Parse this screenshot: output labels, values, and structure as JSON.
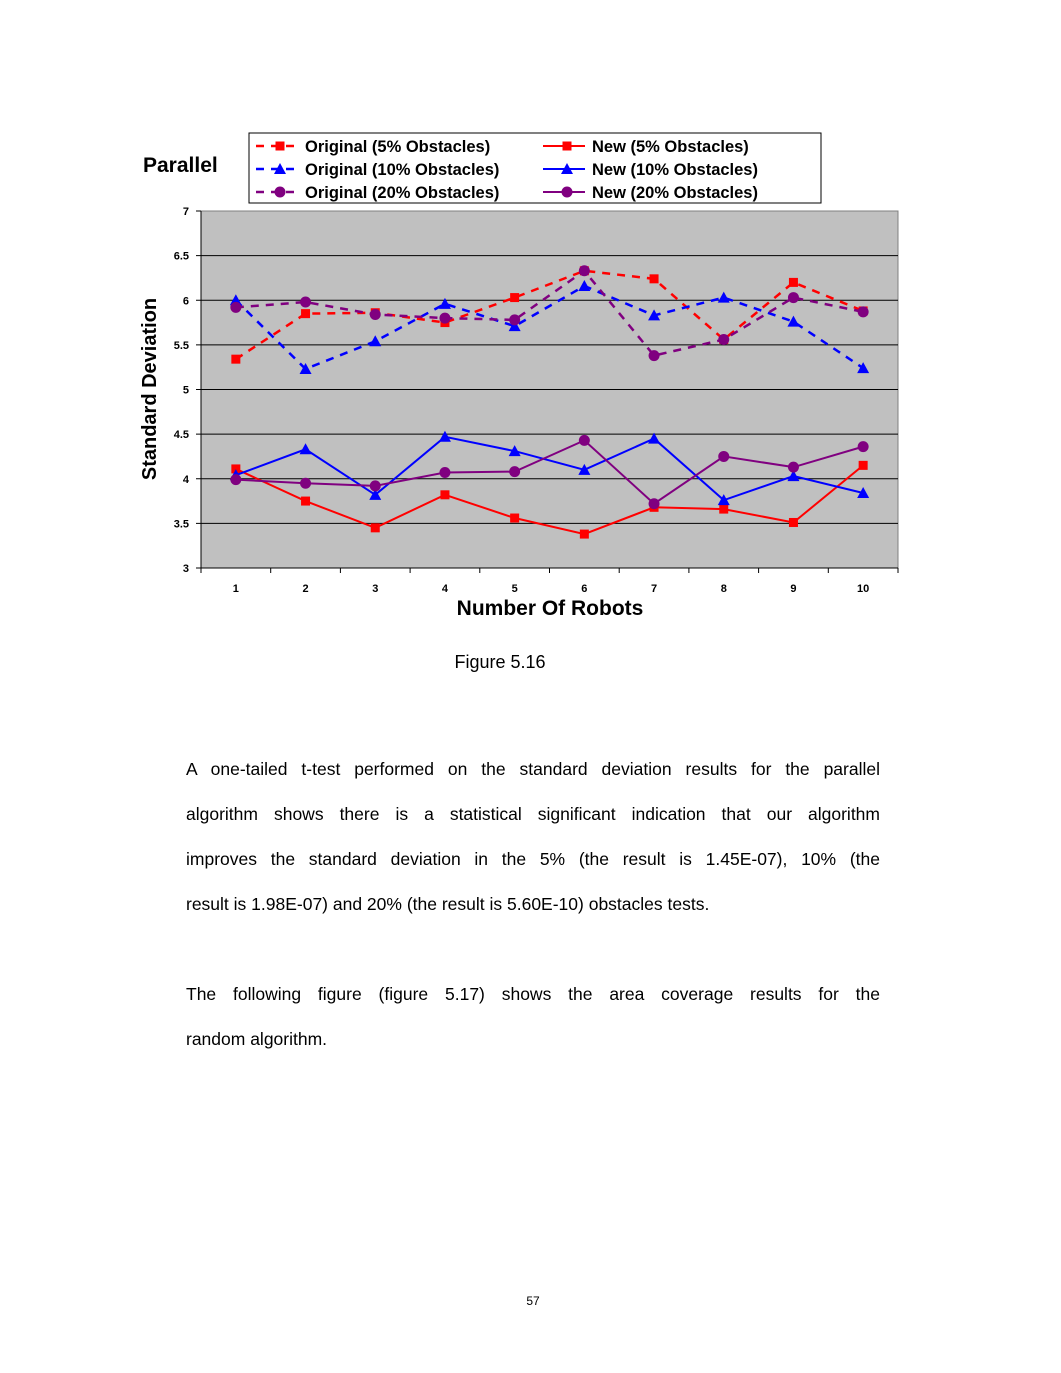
{
  "chart_data": {
    "type": "line",
    "title": "Parallel",
    "xlabel": "Number Of Robots",
    "ylabel": "Standard Deviation",
    "ylim": [
      3,
      7
    ],
    "yticks": [
      "3",
      "3.5",
      "4",
      "4.5",
      "5",
      "5.5",
      "6",
      "6.5",
      "7"
    ],
    "categories": [
      "1",
      "2",
      "3",
      "4",
      "5",
      "6",
      "7",
      "8",
      "9",
      "10"
    ],
    "grid": true,
    "legend": "top",
    "background": "#c0c0c0",
    "series": [
      {
        "name": "Original (5% Obstacles)",
        "color": "#ff0000",
        "dash": true,
        "marker": "square",
        "values": [
          5.34,
          5.85,
          5.86,
          5.75,
          6.03,
          6.33,
          6.24,
          5.56,
          6.2,
          5.88
        ]
      },
      {
        "name": "New (5% Obstacles)",
        "color": "#ff0000",
        "dash": false,
        "marker": "square",
        "values": [
          4.11,
          3.75,
          3.45,
          3.82,
          3.56,
          3.38,
          3.68,
          3.66,
          3.51,
          4.15
        ]
      },
      {
        "name": "Original (10% Obstacles)",
        "color": "#0000ff",
        "dash": true,
        "marker": "triangle",
        "values": [
          6.0,
          5.23,
          5.54,
          5.96,
          5.71,
          6.16,
          5.83,
          6.03,
          5.76,
          5.24
        ]
      },
      {
        "name": "New (10% Obstacles)",
        "color": "#0000ff",
        "dash": false,
        "marker": "triangle",
        "values": [
          4.04,
          4.33,
          3.82,
          4.47,
          4.31,
          4.1,
          4.45,
          3.76,
          4.03,
          3.84
        ]
      },
      {
        "name": "Original (20% Obstacles)",
        "color": "#800080",
        "dash": true,
        "marker": "circle",
        "values": [
          5.92,
          5.98,
          5.84,
          5.8,
          5.78,
          6.33,
          5.38,
          5.56,
          6.03,
          5.87
        ]
      },
      {
        "name": "New (20% Obstacles)",
        "color": "#800080",
        "dash": false,
        "marker": "circle",
        "values": [
          3.99,
          3.95,
          3.92,
          4.07,
          4.08,
          4.43,
          3.72,
          4.25,
          4.13,
          4.36
        ]
      }
    ]
  },
  "caption": "Figure 5.16",
  "paragraph1": [
    "A one-tailed t-test performed on the standard deviation results for the parallel",
    "algorithm shows there is a statistical significant indication that our algorithm",
    "improves the standard deviation in the 5% (the result is 1.45E-07), 10% (the",
    "result is 1.98E-07) and 20% (the result is 5.60E-10) obstacles tests."
  ],
  "paragraph2": [
    "The following figure (figure 5.17) shows the area coverage results for the",
    "random algorithm."
  ],
  "page_number": "57"
}
